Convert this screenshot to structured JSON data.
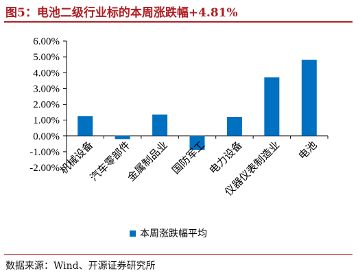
{
  "figure": {
    "title": "图5：电池二级行业标的本周涨跌幅+4.81%",
    "source": "数据来源：Wind、开源证券研究所"
  },
  "colors": {
    "bar": "#0070c0",
    "accent": "#b01e23"
  },
  "chart_data": {
    "type": "bar",
    "title": "",
    "xlabel": "",
    "ylabel": "",
    "categories": [
      "机械设备",
      "汽车零部件",
      "金属制品业",
      "国防军工",
      "电力设备",
      "仪器仪表制造业",
      "电池"
    ],
    "series": [
      {
        "name": "本周涨跌幅平均",
        "values": [
          1.25,
          -0.2,
          1.35,
          -0.88,
          1.2,
          3.7,
          4.81
        ]
      }
    ],
    "ylim": [
      -2,
      6
    ],
    "yticks": [
      -2,
      -1,
      0,
      1,
      2,
      3,
      4,
      5,
      6
    ],
    "ytick_labels": [
      "-2.00%",
      "-1.00%",
      "0.00%",
      "1.00%",
      "2.00%",
      "3.00%",
      "4.00%",
      "5.00%",
      "6.00%"
    ],
    "grid": false,
    "legend_position": "bottom"
  }
}
